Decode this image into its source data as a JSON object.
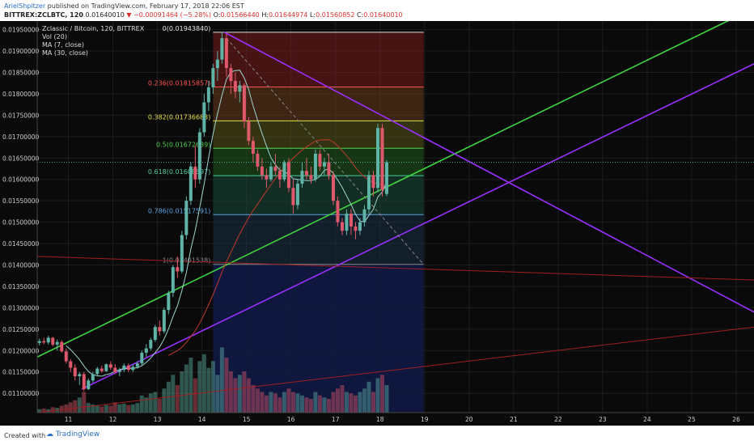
{
  "header": {
    "author": "ArielShpitzer",
    "published": " published on TradingView.com, February 17, 2018 22:06 EST",
    "symbol": "BITTREX:ZCLBTC, 120",
    "open": "0.01640010",
    "change_arrow": "▼",
    "change": "−0.00091464 (−5.28%)",
    "o_label": "O:",
    "o": "0.01566440",
    "h_label": "H:",
    "h": "0.01644974",
    "l_label": "L:",
    "l": "0.01560852",
    "c_label": "C:",
    "c": "0.01640010"
  },
  "legend": {
    "title": "Zclassic / Bitcoin, 120, BITTREX",
    "vol": "Vol (20)",
    "ma7": "MA (7, close)",
    "ma30": "MA (30, close)"
  },
  "footer": {
    "created": "Created with",
    "brand": "TradingView"
  },
  "colors": {
    "background": "#0a0a0a",
    "up": "#5fb3a7",
    "down": "#e0586b",
    "trend_green": "#3fd33f",
    "trend_purple": "#9b30ff",
    "trend_red": "#a02020"
  },
  "chart_data": {
    "type": "candlestick",
    "title": "Zclassic / Bitcoin, 120, BITTREX",
    "ylim": [
      0.01055,
      0.0197
    ],
    "y_ticks": [
      "0.01950000",
      "0.01900000",
      "0.01850000",
      "0.01800000",
      "0.01750000",
      "0.01700000",
      "0.01650000",
      "0.01600000",
      "0.01550000",
      "0.01500000",
      "0.01450000",
      "0.01400000",
      "0.01350000",
      "0.01300000",
      "0.01250000",
      "0.01200000",
      "0.01150000",
      "0.01100000"
    ],
    "y_tick_values": [
      0.0195,
      0.019,
      0.0185,
      0.018,
      0.0175,
      0.017,
      0.0165,
      0.016,
      0.0155,
      0.015,
      0.0145,
      0.014,
      0.0135,
      0.013,
      0.0125,
      0.012,
      0.0115,
      0.011
    ],
    "xlim": [
      10.3,
      26.4
    ],
    "x_ticks": [
      "11",
      "12",
      "13",
      "14",
      "15",
      "16",
      "17",
      "18",
      "19",
      "20",
      "21",
      "22",
      "23",
      "24",
      "25",
      "26"
    ],
    "x_tick_values": [
      11,
      12,
      13,
      14,
      15,
      16,
      17,
      18,
      19,
      20,
      21,
      22,
      23,
      24,
      25,
      26
    ],
    "last_price": 0.0164001,
    "fib": {
      "x_start": 14.25,
      "x_end": 18.98,
      "levels": [
        {
          "label": "0(0.01943840)",
          "value": 0.0194384,
          "fill": "#7a1d1d"
        },
        {
          "label": "0.236(0.01815857)",
          "value": 0.01815857,
          "fill": "#6a3a1a"
        },
        {
          "label": "0.382(0.01736683)",
          "value": 0.01736683,
          "fill": "#55551a"
        },
        {
          "label": "0.5(0.01672689)",
          "value": 0.01672689,
          "fill": "#1f5a1f"
        },
        {
          "label": "0.618(0.01608697)",
          "value": 0.01608697,
          "fill": "#1a4a3a"
        },
        {
          "label": "0.786(0.01517591)",
          "value": 0.01517591,
          "fill": "#1a2f45"
        },
        {
          "label": "1(0.01401538)",
          "value": 0.01401538,
          "fill": "#2a2a2a"
        }
      ],
      "colors": [
        "#e0e0e0",
        "#ff5252",
        "#e3e34a",
        "#4fd14f",
        "#4ecf9f",
        "#59a6e6",
        "#888888"
      ]
    },
    "candles": [
      [
        10.35,
        0.01218,
        0.01228,
        0.01212,
        0.01222
      ],
      [
        10.45,
        0.01222,
        0.0123,
        0.01215,
        0.01219
      ],
      [
        10.55,
        0.01219,
        0.01235,
        0.01214,
        0.0123
      ],
      [
        10.65,
        0.0123,
        0.01232,
        0.0121,
        0.01214
      ],
      [
        10.75,
        0.01214,
        0.01226,
        0.012,
        0.0122
      ],
      [
        10.85,
        0.0122,
        0.01224,
        0.01195,
        0.01198
      ],
      [
        10.95,
        0.01198,
        0.01205,
        0.0117,
        0.01175
      ],
      [
        11.05,
        0.01175,
        0.0118,
        0.0115,
        0.0116
      ],
      [
        11.15,
        0.0116,
        0.01168,
        0.0113,
        0.0114
      ],
      [
        11.25,
        0.0114,
        0.0115,
        0.0112,
        0.01145
      ],
      [
        11.35,
        0.01145,
        0.0115,
        0.01105,
        0.0111
      ],
      [
        11.45,
        0.0111,
        0.01135,
        0.01108,
        0.0113
      ],
      [
        11.55,
        0.0113,
        0.0115,
        0.01125,
        0.01145
      ],
      [
        11.65,
        0.01145,
        0.01162,
        0.0114,
        0.01158
      ],
      [
        11.75,
        0.01158,
        0.01165,
        0.01148,
        0.01152
      ],
      [
        11.85,
        0.01152,
        0.0117,
        0.0115,
        0.01168
      ],
      [
        11.95,
        0.01168,
        0.01175,
        0.01155,
        0.0116
      ],
      [
        12.05,
        0.0116,
        0.01168,
        0.01145,
        0.0115
      ],
      [
        12.15,
        0.0115,
        0.0116,
        0.0114,
        0.01155
      ],
      [
        12.25,
        0.01155,
        0.0117,
        0.0115,
        0.01165
      ],
      [
        12.35,
        0.01165,
        0.0117,
        0.0115,
        0.01155
      ],
      [
        12.45,
        0.01155,
        0.01168,
        0.0115,
        0.01162
      ],
      [
        12.55,
        0.01162,
        0.01175,
        0.01158,
        0.0117
      ],
      [
        12.65,
        0.0117,
        0.012,
        0.01165,
        0.01195
      ],
      [
        12.75,
        0.01195,
        0.01215,
        0.01185,
        0.01205
      ],
      [
        12.85,
        0.01205,
        0.0123,
        0.012,
        0.01225
      ],
      [
        12.95,
        0.01225,
        0.0126,
        0.0122,
        0.01255
      ],
      [
        13.05,
        0.01255,
        0.0127,
        0.01235,
        0.01245
      ],
      [
        13.15,
        0.01245,
        0.013,
        0.0124,
        0.01295
      ],
      [
        13.25,
        0.01295,
        0.0134,
        0.01285,
        0.01335
      ],
      [
        13.35,
        0.01335,
        0.014,
        0.01325,
        0.01395
      ],
      [
        13.45,
        0.01395,
        0.0142,
        0.0137,
        0.01385
      ],
      [
        13.55,
        0.01385,
        0.0148,
        0.0138,
        0.0147
      ],
      [
        13.65,
        0.0147,
        0.0156,
        0.0146,
        0.0155
      ],
      [
        13.75,
        0.0155,
        0.0164,
        0.0154,
        0.0163
      ],
      [
        13.85,
        0.0163,
        0.0168,
        0.0158,
        0.016
      ],
      [
        13.95,
        0.016,
        0.0172,
        0.0159,
        0.0171
      ],
      [
        14.05,
        0.0171,
        0.018,
        0.017,
        0.0178
      ],
      [
        14.15,
        0.0178,
        0.0183,
        0.0176,
        0.01815
      ],
      [
        14.25,
        0.01815,
        0.0187,
        0.018,
        0.0186
      ],
      [
        14.35,
        0.0186,
        0.019,
        0.0183,
        0.0188
      ],
      [
        14.45,
        0.0188,
        0.01944,
        0.0187,
        0.0193
      ],
      [
        14.55,
        0.0193,
        0.0194,
        0.0184,
        0.0186
      ],
      [
        14.65,
        0.0186,
        0.0187,
        0.018,
        0.0183
      ],
      [
        14.75,
        0.0183,
        0.0185,
        0.0179,
        0.01805
      ],
      [
        14.85,
        0.01805,
        0.0183,
        0.0178,
        0.0182
      ],
      [
        14.95,
        0.0182,
        0.01825,
        0.0172,
        0.01735
      ],
      [
        15.05,
        0.01735,
        0.01745,
        0.0168,
        0.0169
      ],
      [
        15.15,
        0.0169,
        0.017,
        0.0164,
        0.0166
      ],
      [
        15.25,
        0.0166,
        0.0167,
        0.0162,
        0.0163
      ],
      [
        15.35,
        0.0163,
        0.0165,
        0.016,
        0.0161
      ],
      [
        15.45,
        0.0161,
        0.01625,
        0.0158,
        0.016
      ],
      [
        15.55,
        0.016,
        0.0164,
        0.01595,
        0.0163
      ],
      [
        15.65,
        0.0163,
        0.0166,
        0.0161,
        0.0162
      ],
      [
        15.75,
        0.0162,
        0.0163,
        0.0158,
        0.016
      ],
      [
        15.85,
        0.016,
        0.01645,
        0.01595,
        0.0164
      ],
      [
        15.95,
        0.0164,
        0.0165,
        0.0157,
        0.0158
      ],
      [
        16.05,
        0.0158,
        0.016,
        0.0152,
        0.0154
      ],
      [
        16.15,
        0.0154,
        0.016,
        0.0153,
        0.0159
      ],
      [
        16.25,
        0.0159,
        0.0164,
        0.0158,
        0.0162
      ],
      [
        16.35,
        0.0162,
        0.0165,
        0.016,
        0.0161
      ],
      [
        16.45,
        0.0161,
        0.0163,
        0.0159,
        0.016
      ],
      [
        16.55,
        0.016,
        0.0167,
        0.01595,
        0.0166
      ],
      [
        16.65,
        0.0166,
        0.0167,
        0.0162,
        0.0163
      ],
      [
        16.75,
        0.0163,
        0.0165,
        0.0161,
        0.0164
      ],
      [
        16.85,
        0.0164,
        0.0166,
        0.016,
        0.0161
      ],
      [
        16.95,
        0.0161,
        0.0162,
        0.0154,
        0.0155
      ],
      [
        17.05,
        0.0155,
        0.0156,
        0.0149,
        0.015
      ],
      [
        17.15,
        0.015,
        0.0151,
        0.0147,
        0.0148
      ],
      [
        17.25,
        0.0148,
        0.0153,
        0.0147,
        0.0152
      ],
      [
        17.35,
        0.0152,
        0.0153,
        0.0147,
        0.0149
      ],
      [
        17.45,
        0.0149,
        0.015,
        0.0146,
        0.0148
      ],
      [
        17.55,
        0.0148,
        0.0151,
        0.0147,
        0.015
      ],
      [
        17.65,
        0.015,
        0.0154,
        0.0149,
        0.0153
      ],
      [
        17.75,
        0.0153,
        0.0162,
        0.0152,
        0.0161
      ],
      [
        17.85,
        0.0161,
        0.0162,
        0.0156,
        0.0158
      ],
      [
        17.95,
        0.0158,
        0.0173,
        0.0157,
        0.0172
      ],
      [
        18.05,
        0.0172,
        0.0173,
        0.0156,
        0.01575
      ],
      [
        18.15,
        0.01566,
        0.01645,
        0.01561,
        0.0164
      ]
    ],
    "trendlines": [
      {
        "name": "green",
        "from": [
          10.3,
          0.01185
        ],
        "to": [
          26.4,
          0.02
        ],
        "color": "#3fd33f"
      },
      {
        "name": "purple-down",
        "from": [
          14.5,
          0.01944
        ],
        "to": [
          26.4,
          0.0129
        ],
        "color": "#9b30ff"
      },
      {
        "name": "purple-up",
        "from": [
          11.3,
          0.0111
        ],
        "to": [
          26.4,
          0.0187
        ],
        "color": "#9b30ff"
      },
      {
        "name": "red-flat",
        "from": [
          10.3,
          0.0142
        ],
        "to": [
          26.4,
          0.01365
        ],
        "color": "#a02020"
      },
      {
        "name": "red-rise",
        "from": [
          10.3,
          0.01055
        ],
        "to": [
          26.4,
          0.01255
        ],
        "color": "#a02020"
      },
      {
        "name": "gray-dashed",
        "from": [
          14.55,
          0.0193
        ],
        "to": [
          18.98,
          0.01401
        ],
        "color": "#888888"
      }
    ],
    "volume_level": [
      0.05,
      0.06,
      0.05,
      0.08,
      0.07,
      0.1,
      0.12,
      0.15,
      0.18,
      0.22,
      0.3,
      0.14,
      0.12,
      0.1,
      0.09,
      0.11,
      0.1,
      0.15,
      0.12,
      0.13,
      0.11,
      0.12,
      0.14,
      0.25,
      0.22,
      0.28,
      0.3,
      0.2,
      0.35,
      0.45,
      0.55,
      0.4,
      0.6,
      0.7,
      0.8,
      0.5,
      0.75,
      0.85,
      0.65,
      0.75,
      0.55,
      0.95,
      0.8,
      0.6,
      0.5,
      0.55,
      0.6,
      0.5,
      0.4,
      0.35,
      0.3,
      0.25,
      0.3,
      0.28,
      0.22,
      0.3,
      0.35,
      0.3,
      0.28,
      0.25,
      0.22,
      0.2,
      0.3,
      0.25,
      0.22,
      0.2,
      0.3,
      0.35,
      0.4,
      0.3,
      0.28,
      0.25,
      0.3,
      0.35,
      0.45,
      0.3,
      0.5,
      0.55,
      0.4
    ]
  }
}
